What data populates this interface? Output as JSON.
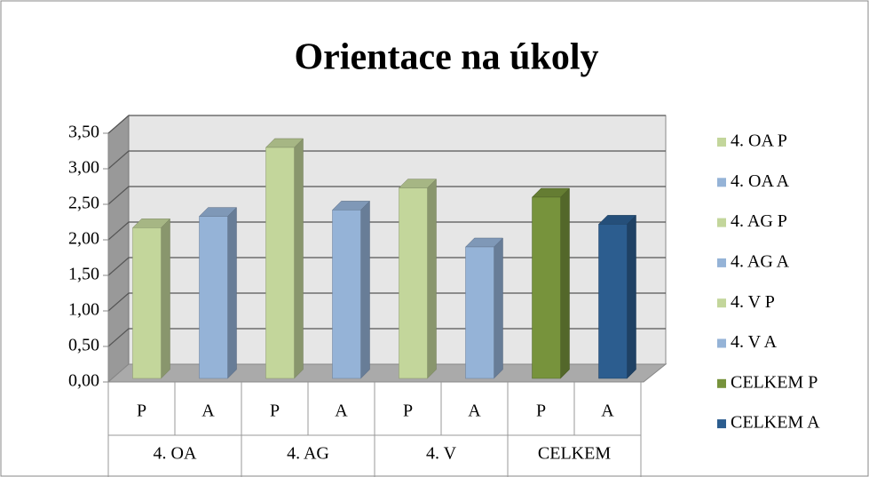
{
  "chart_data": {
    "type": "bar3d",
    "title": "Orientace na úkoly",
    "categories": [
      "P",
      "A",
      "P",
      "A",
      "P",
      "A",
      "P",
      "A"
    ],
    "category_groups": [
      "4. OA",
      "4. AG",
      "4. V",
      "CELKEM"
    ],
    "series": [
      {
        "name": "4. OA P",
        "color": "#c3d69b",
        "values": [
          2.12,
          null,
          null,
          null,
          null,
          null,
          null,
          null
        ]
      },
      {
        "name": "4. OA A",
        "color": "#95b3d7",
        "values": [
          null,
          2.28,
          null,
          null,
          null,
          null,
          null,
          null
        ]
      },
      {
        "name": "4. AG P",
        "color": "#c3d69b",
        "values": [
          null,
          null,
          3.25,
          null,
          null,
          null,
          null,
          null
        ]
      },
      {
        "name": "4. AG A",
        "color": "#95b3d7",
        "values": [
          null,
          null,
          null,
          2.37,
          null,
          null,
          null,
          null
        ]
      },
      {
        "name": "4. V P",
        "color": "#c3d69b",
        "values": [
          null,
          null,
          null,
          null,
          2.68,
          null,
          null,
          null
        ]
      },
      {
        "name": "4. V A",
        "color": "#95b3d7",
        "values": [
          null,
          null,
          null,
          null,
          null,
          1.85,
          null,
          null
        ]
      },
      {
        "name": "CELKEM P",
        "color": "#77933c",
        "values": [
          null,
          null,
          null,
          null,
          null,
          null,
          2.55,
          null
        ]
      },
      {
        "name": "CELKEM A",
        "color": "#2c5d8f",
        "values": [
          null,
          null,
          null,
          null,
          null,
          null,
          null,
          2.17
        ]
      }
    ],
    "ylim": [
      0,
      3.5
    ],
    "yticks": [
      {
        "value": 0,
        "label": "0,00"
      },
      {
        "value": 0.5,
        "label": "0,50"
      },
      {
        "value": 1,
        "label": "1,00"
      },
      {
        "value": 1.5,
        "label": "1,50"
      },
      {
        "value": 2,
        "label": "2,00"
      },
      {
        "value": 2.5,
        "label": "2,50"
      },
      {
        "value": 3,
        "label": "3,00"
      },
      {
        "value": 3.5,
        "label": "3,50"
      }
    ],
    "grid": true
  }
}
